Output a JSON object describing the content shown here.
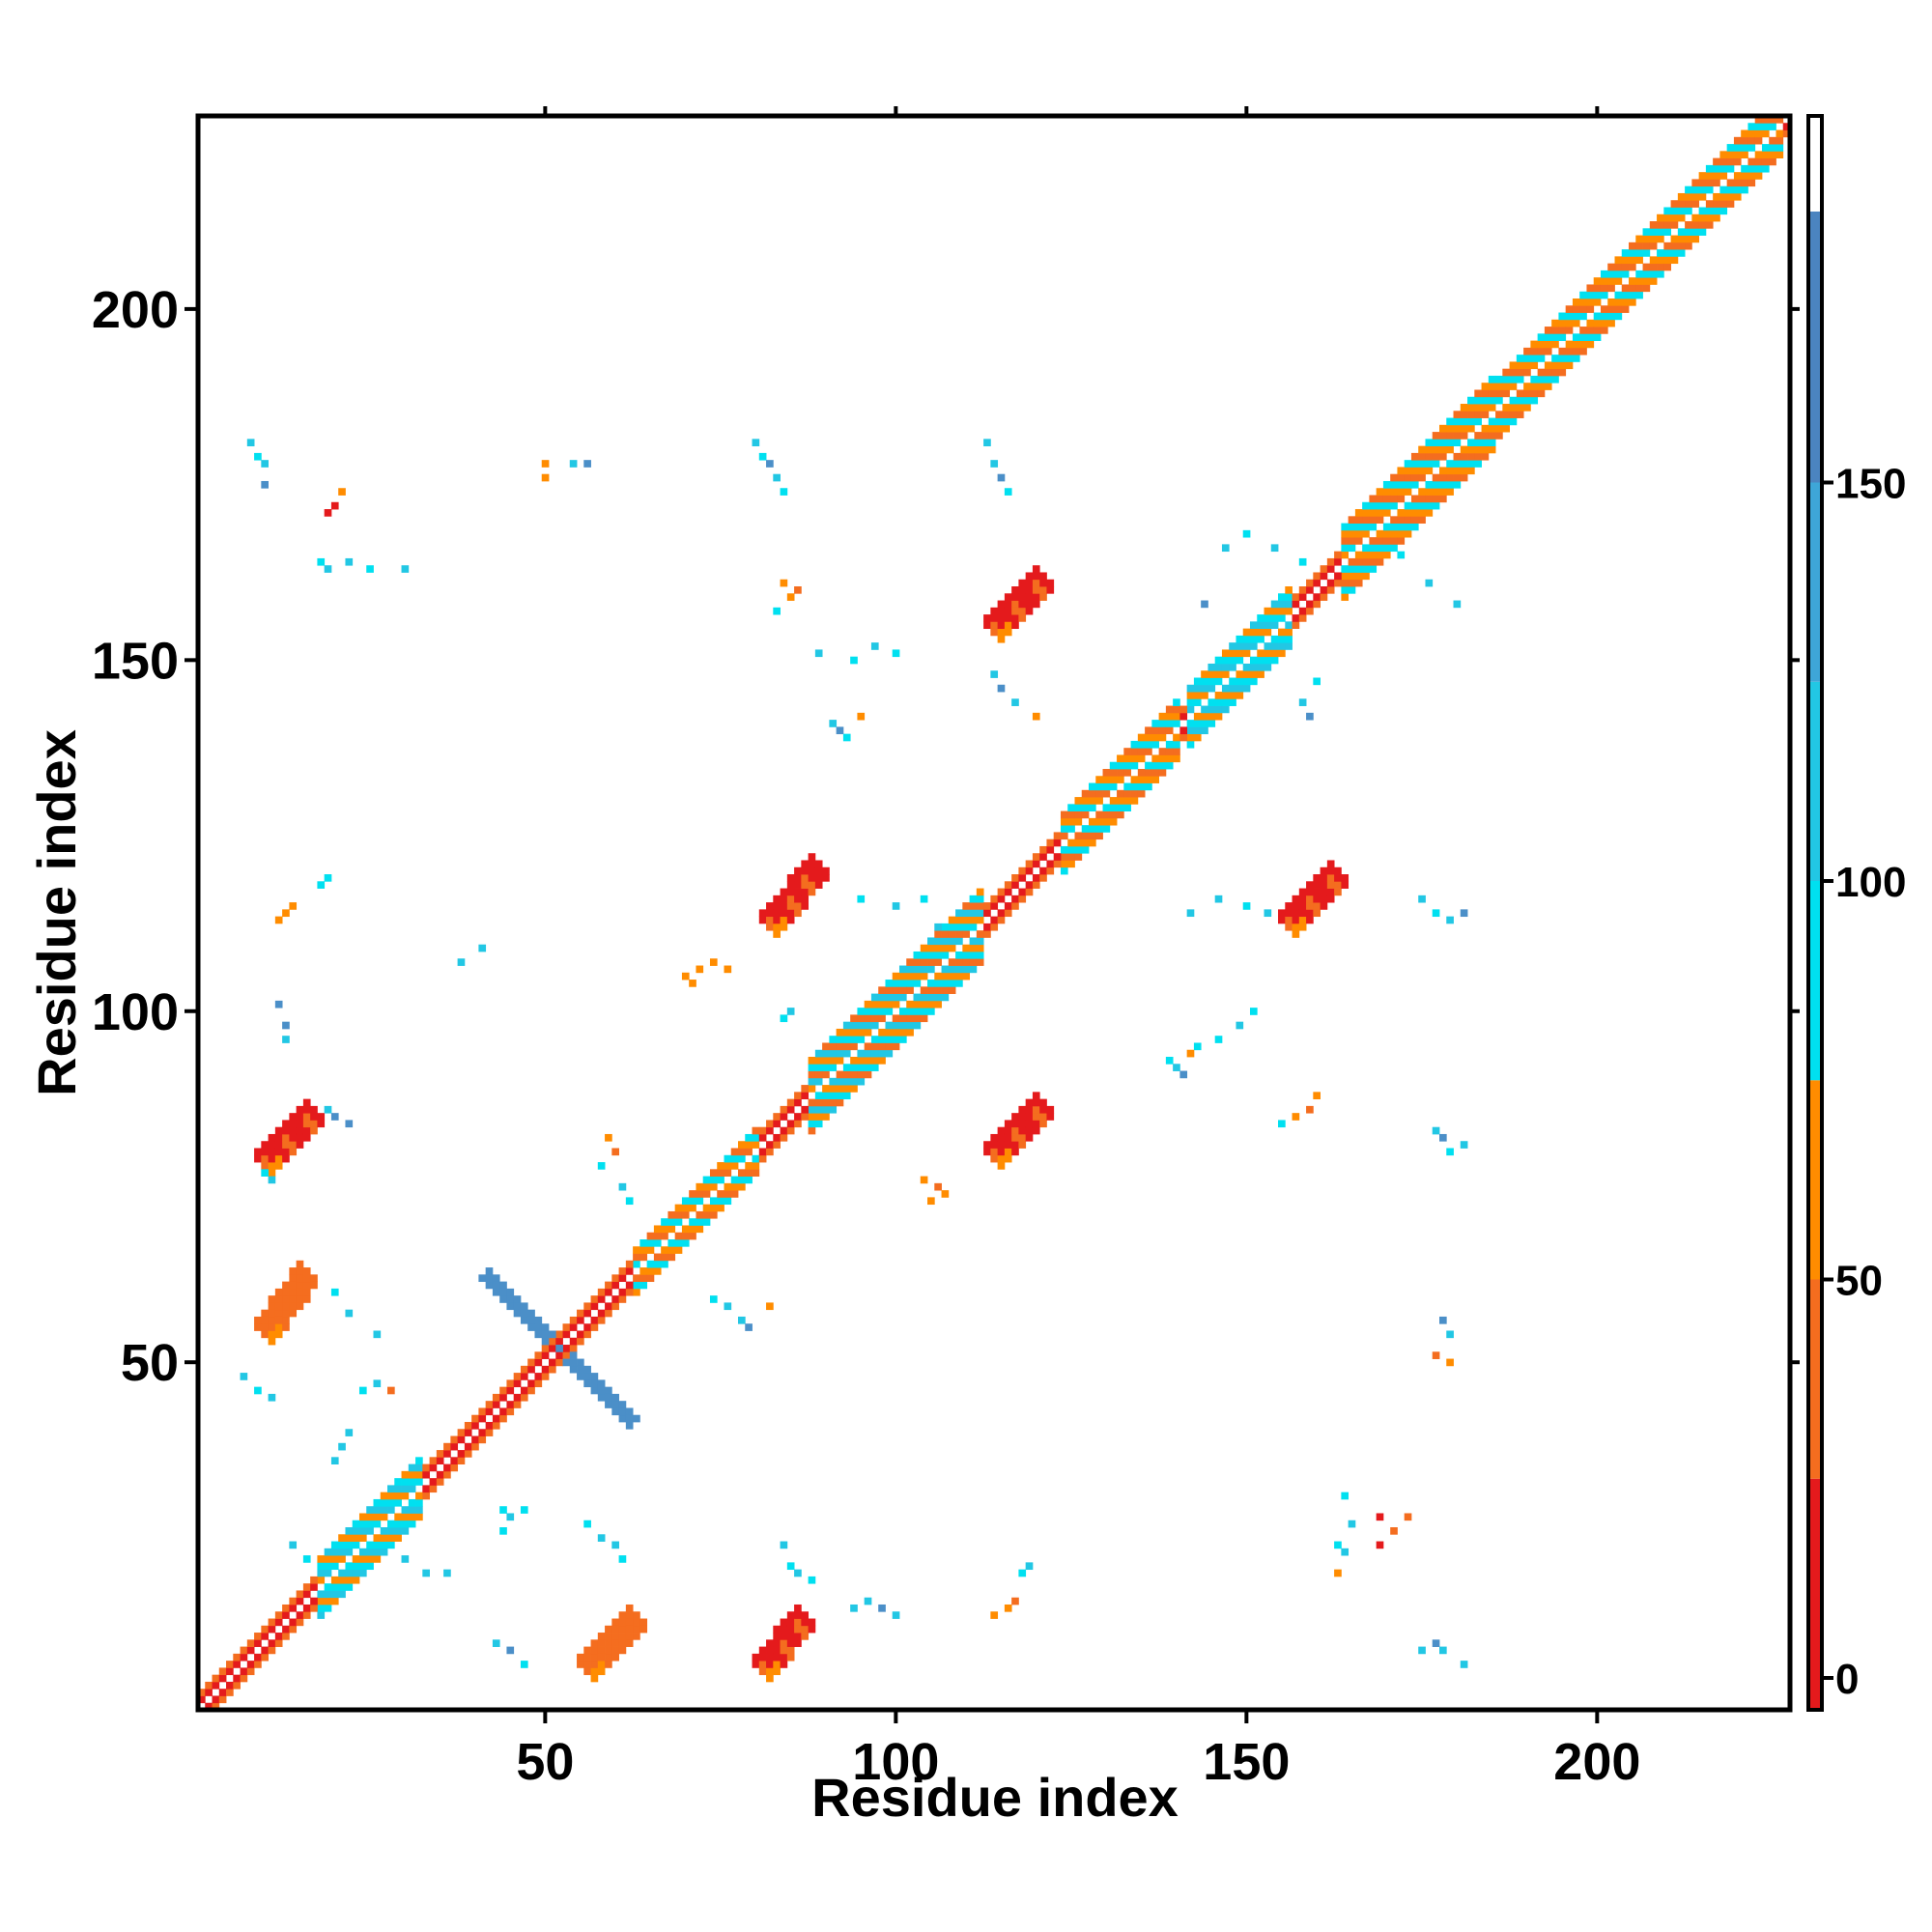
{
  "chart_data": {
    "type": "heatmap",
    "title": "",
    "xlabel": "Residue index",
    "ylabel": "Residue index",
    "xlim": [
      1,
      227
    ],
    "ylim": [
      1,
      227
    ],
    "x_ticks": [
      50,
      100,
      150,
      200
    ],
    "y_ticks": [
      50,
      100,
      150,
      200
    ],
    "colorbar": {
      "min": -4,
      "max": 196,
      "ticks": [
        0,
        50,
        100,
        150
      ],
      "bands": [
        {
          "from": -4,
          "to": 25,
          "color": "#e41a1c"
        },
        {
          "from": 25,
          "to": 50,
          "color": "#f46d1f"
        },
        {
          "from": 50,
          "to": 75,
          "color": "#ff8c00"
        },
        {
          "from": 75,
          "to": 100,
          "color": "#00e0f0"
        },
        {
          "from": 100,
          "to": 125,
          "color": "#22c7e4"
        },
        {
          "from": 125,
          "to": 150,
          "color": "#3ea6d8"
        },
        {
          "from": 150,
          "to": 184,
          "color": "#4b84c0"
        },
        {
          "from": 184,
          "to": 196,
          "color": "#ffffff"
        }
      ]
    },
    "palette": {
      "red": "#e41a1c",
      "red_orange": "#f46d1f",
      "orange": "#ff8c00",
      "cyan": "#00e0f0",
      "light_blue": "#22c7e4",
      "steel_blue": "#4b8fc8"
    },
    "diagonal_segments": [
      {
        "from": 1,
        "to": 227,
        "width": 2,
        "colors": [
          "red",
          "red_orange",
          "orange"
        ]
      }
    ],
    "helix_blocks": [
      {
        "from": 18,
        "to": 32,
        "width": 4,
        "colors": [
          "cyan",
          "orange",
          "light_blue"
        ]
      },
      {
        "from": 63,
        "to": 80,
        "width": 3,
        "colors": [
          "orange",
          "cyan",
          "red_orange"
        ]
      },
      {
        "from": 88,
        "to": 112,
        "width": 5,
        "colors": [
          "cyan",
          "orange",
          "light_blue",
          "red_orange"
        ]
      },
      {
        "from": 124,
        "to": 140,
        "width": 4,
        "colors": [
          "cyan",
          "orange",
          "red_orange"
        ]
      },
      {
        "from": 142,
        "to": 156,
        "width": 4,
        "colors": [
          "cyan",
          "orange",
          "light_blue"
        ]
      },
      {
        "from": 164,
        "to": 185,
        "width": 5,
        "colors": [
          "orange",
          "cyan",
          "red_orange"
        ]
      },
      {
        "from": 186,
        "to": 226,
        "width": 4,
        "colors": [
          "orange",
          "cyan",
          "red_orange"
        ]
      }
    ],
    "sheet_pairs": [
      {
        "x0": 9,
        "y0": 55,
        "x1": 15,
        "y1": 63,
        "width": 3,
        "color": "red_orange"
      },
      {
        "x0": 9,
        "y0": 79,
        "x1": 16,
        "y1": 86,
        "width": 3,
        "color": "red"
      },
      {
        "x0": 55,
        "y0": 7,
        "x1": 62,
        "y1": 14,
        "width": 3,
        "color": "red_orange"
      },
      {
        "x0": 80,
        "y0": 7,
        "x1": 86,
        "y1": 14,
        "width": 3,
        "color": "red"
      },
      {
        "x0": 81,
        "y0": 113,
        "x1": 88,
        "y1": 121,
        "width": 3,
        "color": "red"
      },
      {
        "x0": 113,
        "y0": 80,
        "x1": 120,
        "y1": 87,
        "width": 3,
        "color": "red"
      },
      {
        "x0": 113,
        "y0": 155,
        "x1": 120,
        "y1": 162,
        "width": 3,
        "color": "red"
      },
      {
        "x0": 155,
        "y0": 113,
        "x1": 162,
        "y1": 120,
        "width": 3,
        "color": "red"
      }
    ],
    "antidiagonal": {
      "x0": 42,
      "y0": 62,
      "x1": 62,
      "y1": 42,
      "width": 3,
      "color": "steel_blue"
    },
    "scatter_cells": [
      [
        8,
        181,
        "light_blue"
      ],
      [
        9,
        179,
        "cyan"
      ],
      [
        10,
        178,
        "light_blue"
      ],
      [
        10,
        175,
        "steel_blue"
      ],
      [
        19,
        171,
        "red"
      ],
      [
        20,
        172,
        "red"
      ],
      [
        21,
        174,
        "orange"
      ],
      [
        18,
        164,
        "cyan"
      ],
      [
        19,
        163,
        "light_blue"
      ],
      [
        22,
        164,
        "light_blue"
      ],
      [
        25,
        163,
        "cyan"
      ],
      [
        30,
        163,
        "light_blue"
      ],
      [
        50,
        178,
        "orange"
      ],
      [
        50,
        176,
        "orange"
      ],
      [
        54,
        178,
        "light_blue"
      ],
      [
        56,
        178,
        "steel_blue"
      ],
      [
        80,
        181,
        "light_blue"
      ],
      [
        81,
        179,
        "cyan"
      ],
      [
        82,
        178,
        "steel_blue"
      ],
      [
        83,
        176,
        "light_blue"
      ],
      [
        84,
        174,
        "cyan"
      ],
      [
        113,
        181,
        "light_blue"
      ],
      [
        114,
        178,
        "light_blue"
      ],
      [
        115,
        176,
        "steel_blue"
      ],
      [
        116,
        174,
        "cyan"
      ],
      [
        84,
        161,
        "orange"
      ],
      [
        85,
        159,
        "orange"
      ],
      [
        86,
        160,
        "red_orange"
      ],
      [
        83,
        157,
        "cyan"
      ],
      [
        89,
        151,
        "light_blue"
      ],
      [
        94,
        150,
        "cyan"
      ],
      [
        97,
        152,
        "light_blue"
      ],
      [
        100,
        151,
        "cyan"
      ],
      [
        91,
        141,
        "light_blue"
      ],
      [
        92,
        140,
        "steel_blue"
      ],
      [
        93,
        139,
        "cyan"
      ],
      [
        95,
        142,
        "orange"
      ],
      [
        114,
        148,
        "light_blue"
      ],
      [
        115,
        146,
        "steel_blue"
      ],
      [
        117,
        144,
        "light_blue"
      ],
      [
        120,
        142,
        "orange"
      ],
      [
        12,
        113,
        "orange"
      ],
      [
        13,
        114,
        "orange"
      ],
      [
        14,
        115,
        "orange"
      ],
      [
        18,
        118,
        "cyan"
      ],
      [
        19,
        119,
        "cyan"
      ],
      [
        70,
        105,
        "orange"
      ],
      [
        72,
        106,
        "orange"
      ],
      [
        74,
        107,
        "orange"
      ],
      [
        76,
        106,
        "orange"
      ],
      [
        71,
        104,
        "orange"
      ],
      [
        95,
        116,
        "cyan"
      ],
      [
        100,
        115,
        "light_blue"
      ],
      [
        104,
        116,
        "cyan"
      ],
      [
        106,
        112,
        "light_blue"
      ],
      [
        12,
        101,
        "steel_blue"
      ],
      [
        13,
        98,
        "steel_blue"
      ],
      [
        13,
        96,
        "light_blue"
      ],
      [
        84,
        99,
        "cyan"
      ],
      [
        85,
        100,
        "light_blue"
      ],
      [
        19,
        86,
        "light_blue"
      ],
      [
        20,
        85,
        "steel_blue"
      ],
      [
        22,
        84,
        "steel_blue"
      ],
      [
        10,
        77,
        "cyan"
      ],
      [
        11,
        76,
        "light_blue"
      ],
      [
        59,
        82,
        "orange"
      ],
      [
        60,
        80,
        "red_orange"
      ],
      [
        58,
        78,
        "cyan"
      ],
      [
        61,
        75,
        "light_blue"
      ],
      [
        62,
        73,
        "cyan"
      ],
      [
        104,
        76,
        "orange"
      ],
      [
        106,
        75,
        "red_orange"
      ],
      [
        107,
        74,
        "orange"
      ],
      [
        105,
        73,
        "orange"
      ],
      [
        139,
        93,
        "cyan"
      ],
      [
        140,
        92,
        "light_blue"
      ],
      [
        141,
        91,
        "steel_blue"
      ],
      [
        142,
        94,
        "orange"
      ],
      [
        143,
        95,
        "cyan"
      ],
      [
        146,
        96,
        "cyan"
      ],
      [
        149,
        98,
        "light_blue"
      ],
      [
        151,
        100,
        "cyan"
      ],
      [
        155,
        84,
        "cyan"
      ],
      [
        157,
        85,
        "orange"
      ],
      [
        159,
        86,
        "red_orange"
      ],
      [
        160,
        88,
        "orange"
      ],
      [
        177,
        83,
        "light_blue"
      ],
      [
        178,
        82,
        "steel_blue"
      ],
      [
        179,
        80,
        "cyan"
      ],
      [
        181,
        81,
        "light_blue"
      ],
      [
        142,
        114,
        "light_blue"
      ],
      [
        146,
        116,
        "light_blue"
      ],
      [
        150,
        115,
        "cyan"
      ],
      [
        153,
        114,
        "light_blue"
      ],
      [
        175,
        116,
        "light_blue"
      ],
      [
        177,
        114,
        "cyan"
      ],
      [
        179,
        113,
        "light_blue"
      ],
      [
        181,
        114,
        "steel_blue"
      ],
      [
        147,
        166,
        "light_blue"
      ],
      [
        150,
        168,
        "cyan"
      ],
      [
        154,
        166,
        "light_blue"
      ],
      [
        158,
        164,
        "cyan"
      ],
      [
        170,
        168,
        "light_blue"
      ],
      [
        172,
        165,
        "cyan"
      ],
      [
        176,
        161,
        "light_blue"
      ],
      [
        180,
        158,
        "light_blue"
      ],
      [
        158,
        144,
        "light_blue"
      ],
      [
        159,
        142,
        "steel_blue"
      ],
      [
        160,
        147,
        "cyan"
      ],
      [
        144,
        158,
        "steel_blue"
      ],
      [
        74,
        59,
        "cyan"
      ],
      [
        76,
        58,
        "light_blue"
      ],
      [
        78,
        56,
        "light_blue"
      ],
      [
        79,
        55,
        "steel_blue"
      ],
      [
        82,
        58,
        "orange"
      ],
      [
        20,
        60,
        "cyan"
      ],
      [
        22,
        57,
        "light_blue"
      ],
      [
        26,
        54,
        "light_blue"
      ],
      [
        7,
        48,
        "light_blue"
      ],
      [
        9,
        46,
        "cyan"
      ],
      [
        11,
        45,
        "light_blue"
      ],
      [
        24,
        46,
        "cyan"
      ],
      [
        26,
        47,
        "light_blue"
      ],
      [
        28,
        46,
        "red_orange"
      ],
      [
        178,
        56,
        "steel_blue"
      ],
      [
        179,
        54,
        "light_blue"
      ],
      [
        177,
        51,
        "red_orange"
      ],
      [
        179,
        50,
        "orange"
      ],
      [
        44,
        29,
        "cyan"
      ],
      [
        45,
        28,
        "light_blue"
      ],
      [
        47,
        29,
        "cyan"
      ],
      [
        44,
        26,
        "cyan"
      ],
      [
        56,
        27,
        "cyan"
      ],
      [
        58,
        25,
        "light_blue"
      ],
      [
        60,
        24,
        "light_blue"
      ],
      [
        61,
        22,
        "cyan"
      ],
      [
        84,
        24,
        "light_blue"
      ],
      [
        85,
        21,
        "cyan"
      ],
      [
        86,
        20,
        "light_blue"
      ],
      [
        88,
        19,
        "cyan"
      ],
      [
        94,
        15,
        "light_blue"
      ],
      [
        96,
        16,
        "light_blue"
      ],
      [
        98,
        15,
        "steel_blue"
      ],
      [
        100,
        14,
        "light_blue"
      ],
      [
        118,
        20,
        "cyan"
      ],
      [
        119,
        21,
        "light_blue"
      ],
      [
        114,
        14,
        "orange"
      ],
      [
        116,
        15,
        "orange"
      ],
      [
        117,
        16,
        "red_orange"
      ],
      [
        163,
        24,
        "cyan"
      ],
      [
        164,
        23,
        "light_blue"
      ],
      [
        165,
        27,
        "light_blue"
      ],
      [
        164,
        31,
        "cyan"
      ],
      [
        163,
        20,
        "orange"
      ],
      [
        169,
        28,
        "red"
      ],
      [
        171,
        26,
        "red_orange"
      ],
      [
        173,
        28,
        "red_orange"
      ],
      [
        169,
        24,
        "red"
      ],
      [
        175,
        9,
        "light_blue"
      ],
      [
        177,
        10,
        "steel_blue"
      ],
      [
        178,
        9,
        "light_blue"
      ],
      [
        181,
        7,
        "light_blue"
      ],
      [
        43,
        10,
        "light_blue"
      ],
      [
        45,
        9,
        "steel_blue"
      ],
      [
        47,
        7,
        "cyan"
      ],
      [
        20,
        36,
        "light_blue"
      ],
      [
        21,
        38,
        "light_blue"
      ],
      [
        22,
        40,
        "light_blue"
      ],
      [
        30,
        22,
        "light_blue"
      ],
      [
        33,
        20,
        "light_blue"
      ],
      [
        36,
        20,
        "light_blue"
      ],
      [
        16,
        22,
        "cyan"
      ],
      [
        14,
        24,
        "light_blue"
      ],
      [
        41,
        109,
        "light_blue"
      ],
      [
        38,
        107,
        "light_blue"
      ]
    ]
  }
}
